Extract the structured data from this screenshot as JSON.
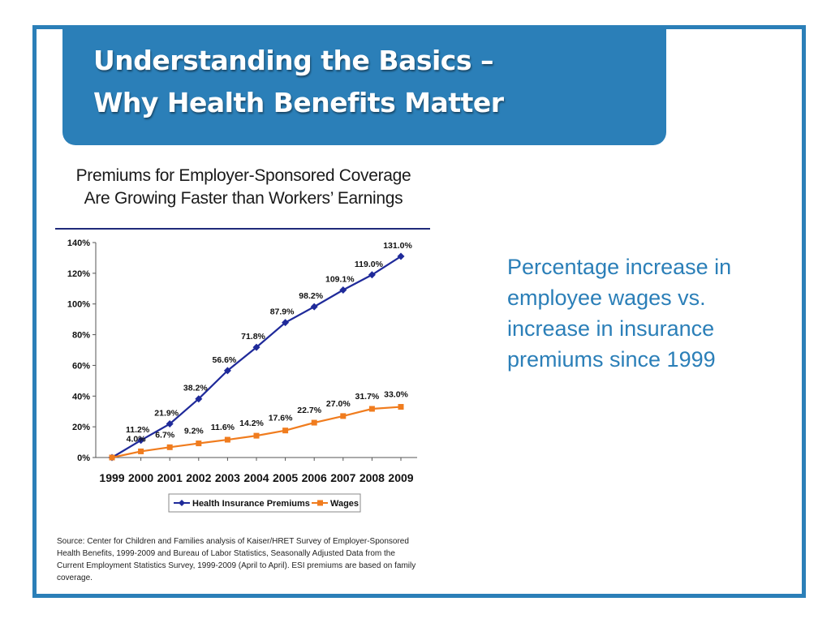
{
  "slide": {
    "title_line1": "Understanding the Basics –",
    "title_line2": "Why Health Benefits Matter",
    "side_text": "Percentage increase in employee wages vs. increase in insurance premiums since 1999",
    "accent_color": "#2b7fb8"
  },
  "chart_data": {
    "type": "line",
    "title_line1": "Premiums for Employer-Sponsored Coverage",
    "title_line2": "Are Growing Faster than Workers’ Earnings",
    "categories": [
      "1999",
      "2000",
      "2001",
      "2002",
      "2003",
      "2004",
      "2005",
      "2006",
      "2007",
      "2008",
      "2009"
    ],
    "ylim": [
      0,
      140
    ],
    "yticks": [
      0,
      20,
      40,
      60,
      80,
      100,
      120,
      140
    ],
    "ytick_labels": [
      "0%",
      "20%",
      "40%",
      "60%",
      "80%",
      "100%",
      "120%",
      "140%"
    ],
    "series": [
      {
        "name": "Health Insurance Premiums",
        "color": "#1f2a9a",
        "marker": "diamond",
        "values": [
          0,
          11.2,
          21.9,
          38.2,
          56.6,
          71.8,
          87.9,
          98.2,
          109.1,
          119.0,
          131.0
        ],
        "labels": [
          "",
          "11.2%",
          "21.9%",
          "38.2%",
          "56.6%",
          "71.8%",
          "87.9%",
          "98.2%",
          "109.1%",
          "119.0%",
          "131.0%"
        ]
      },
      {
        "name": "Wages",
        "color": "#f07c1e",
        "marker": "square",
        "values": [
          0,
          4.0,
          6.7,
          9.2,
          11.6,
          14.2,
          17.6,
          22.7,
          27.0,
          31.7,
          33.0
        ],
        "labels": [
          "",
          "4.0%",
          "6.7%",
          "9.2%",
          "11.6%",
          "14.2%",
          "17.6%",
          "22.7%",
          "27.0%",
          "31.7%",
          "33.0%"
        ]
      }
    ],
    "legend_position": "bottom",
    "source": "Source: Center for Children and Families analysis of Kaiser/HRET Survey of Employer-Sponsored Health Benefits, 1999-2009 and Bureau of Labor Statistics, Seasonally Adjusted Data from the Current Employment Statistics Survey, 1999-2009 (April to April). ESI premiums are based on family coverage."
  }
}
